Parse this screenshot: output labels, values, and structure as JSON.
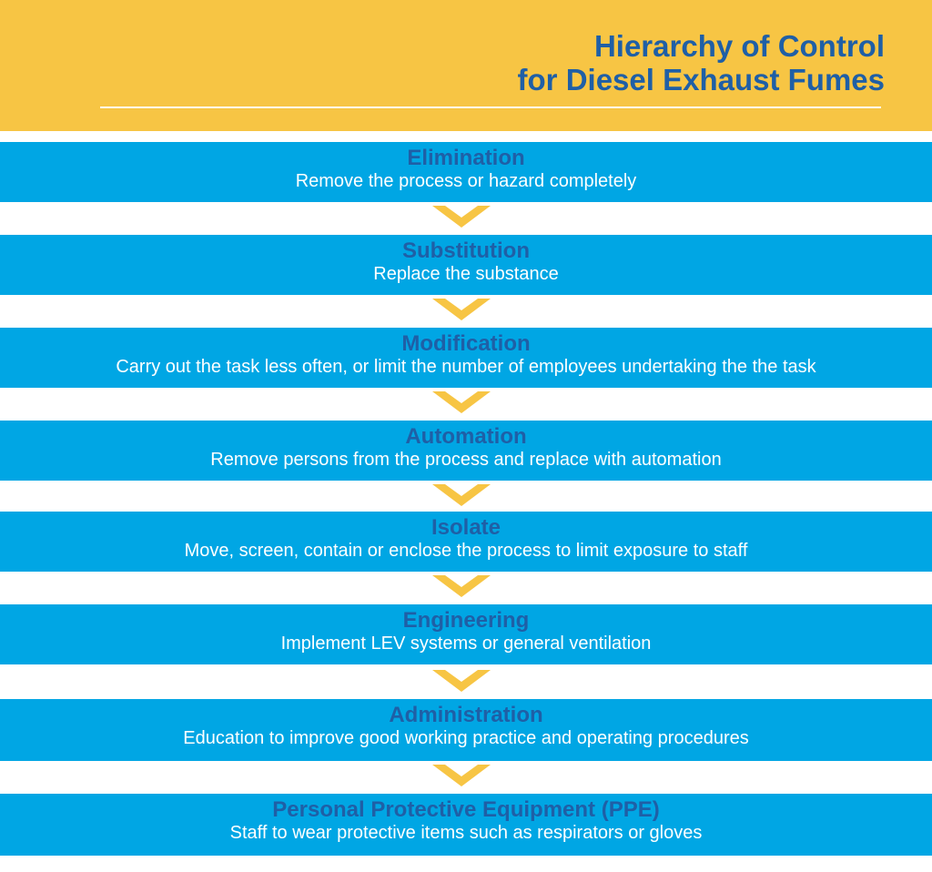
{
  "header": {
    "title_line1": "Hierarchy of Control",
    "title_line2": "for Diesel Exhaust Fumes"
  },
  "colors": {
    "header_bg": "#f7c544",
    "band_bg": "#00a6e4",
    "title_text": "#1f5fa6",
    "chevron": "#f7c544"
  },
  "steps": [
    {
      "name": "Elimination",
      "description": "Remove the process or hazard completely"
    },
    {
      "name": "Substitution",
      "description": "Replace the substance"
    },
    {
      "name": "Modification",
      "description": "Carry out the task less often, or limit the number of employees undertaking the the task"
    },
    {
      "name": "Automation",
      "description": "Remove persons from the process and replace with automation"
    },
    {
      "name": "Isolate",
      "description": "Move, screen, contain or enclose the process to limit exposure to staff"
    },
    {
      "name": "Engineering",
      "description": "Implement LEV systems or general ventilation"
    },
    {
      "name": "Administration",
      "description": "Education to improve good working practice and operating procedures"
    },
    {
      "name": "Personal Protective Equipment (PPE)",
      "description": "Staff to wear protective items such as respirators or gloves"
    }
  ],
  "chevron_icon": "chevron-down-icon"
}
